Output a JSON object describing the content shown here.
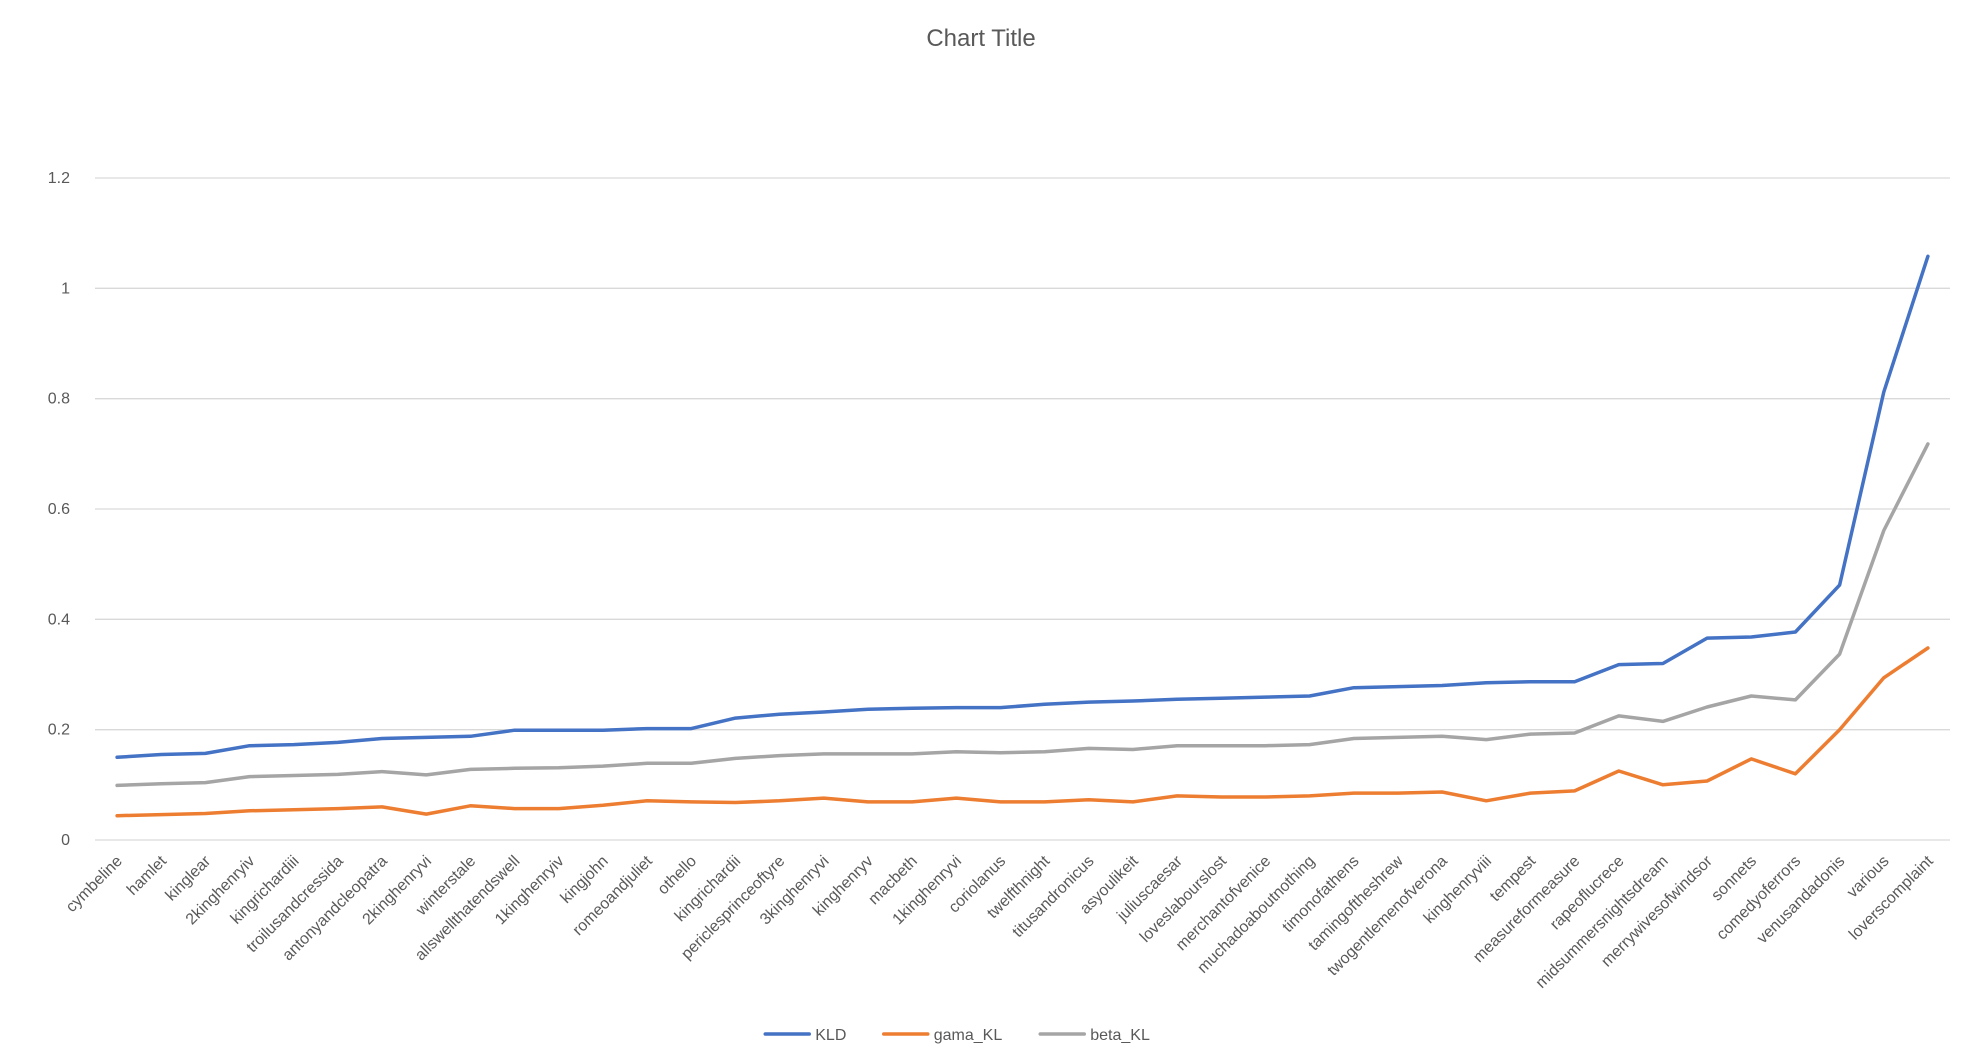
{
  "chart_data": {
    "type": "line",
    "title": "Chart Title",
    "xlabel": "",
    "ylabel": "",
    "ylim": [
      0,
      1.2
    ],
    "ytick_values": [
      0,
      0.2,
      0.4,
      0.6,
      0.8,
      1,
      1.2
    ],
    "ytick_labels": [
      "0",
      "0.2",
      "0.4",
      "0.6",
      "0.8",
      "1",
      "1.2"
    ],
    "grid": true,
    "legend_position": "bottom",
    "categories": [
      "cymbeline",
      "hamlet",
      "kinglear",
      "2kinghenryiv",
      "kingrichardiii",
      "troilusandcressida",
      "antonyandcleopatra",
      "2kinghenryvi",
      "winterstale",
      "allswellthatendswell",
      "1kinghenryiv",
      "kingjohn",
      "romeoandjuliet",
      "othello",
      "kingrichardii",
      "periclesprinceoftyre",
      "3kinghenryvi",
      "kinghenryv",
      "macbeth",
      "1kinghenryvi",
      "coriolanus",
      "twelfthnight",
      "titusandronicus",
      "asyoulikeit",
      "juliuscaesar",
      "loveslabourslost",
      "merchantofvenice",
      "muchadoaboutnothing",
      "timonofathens",
      "tamingoftheshrew",
      "twogentlemenofverona",
      "kinghenryviii",
      "tempest",
      "measureformeasure",
      "rapeoflucrece",
      "midsummersnightsdream",
      "merrywivesofwindsor",
      "sonnets",
      "comedyoferrors",
      "venusandadonis",
      "various",
      "loverscomplaint"
    ],
    "series": [
      {
        "name": "KLD",
        "color": "#4472C4",
        "values": [
          0.15,
          0.155,
          0.157,
          0.171,
          0.173,
          0.177,
          0.184,
          0.186,
          0.188,
          0.199,
          0.199,
          0.199,
          0.202,
          0.202,
          0.221,
          0.228,
          0.232,
          0.237,
          0.239,
          0.24,
          0.24,
          0.246,
          0.25,
          0.252,
          0.255,
          0.257,
          0.259,
          0.261,
          0.276,
          0.278,
          0.28,
          0.285,
          0.287,
          0.287,
          0.318,
          0.32,
          0.366,
          0.368,
          0.377,
          0.462,
          0.812,
          1.058
        ]
      },
      {
        "name": "gama_KL",
        "color": "#ED7D31",
        "values": [
          0.044,
          0.046,
          0.048,
          0.053,
          0.055,
          0.057,
          0.06,
          0.047,
          0.062,
          0.057,
          0.057,
          0.063,
          0.071,
          0.069,
          0.068,
          0.071,
          0.076,
          0.069,
          0.069,
          0.076,
          0.069,
          0.069,
          0.073,
          0.069,
          0.08,
          0.078,
          0.078,
          0.08,
          0.085,
          0.085,
          0.087,
          0.071,
          0.085,
          0.089,
          0.125,
          0.1,
          0.107,
          0.147,
          0.12,
          0.2,
          0.294,
          0.348
        ]
      },
      {
        "name": "beta_KL",
        "color": "#A5A5A5",
        "values": [
          0.099,
          0.102,
          0.104,
          0.115,
          0.117,
          0.119,
          0.124,
          0.118,
          0.128,
          0.13,
          0.131,
          0.134,
          0.139,
          0.139,
          0.148,
          0.153,
          0.156,
          0.156,
          0.156,
          0.16,
          0.158,
          0.16,
          0.166,
          0.164,
          0.171,
          0.171,
          0.171,
          0.173,
          0.184,
          0.186,
          0.188,
          0.182,
          0.192,
          0.194,
          0.225,
          0.215,
          0.241,
          0.261,
          0.254,
          0.337,
          0.561,
          0.718
        ]
      }
    ]
  }
}
